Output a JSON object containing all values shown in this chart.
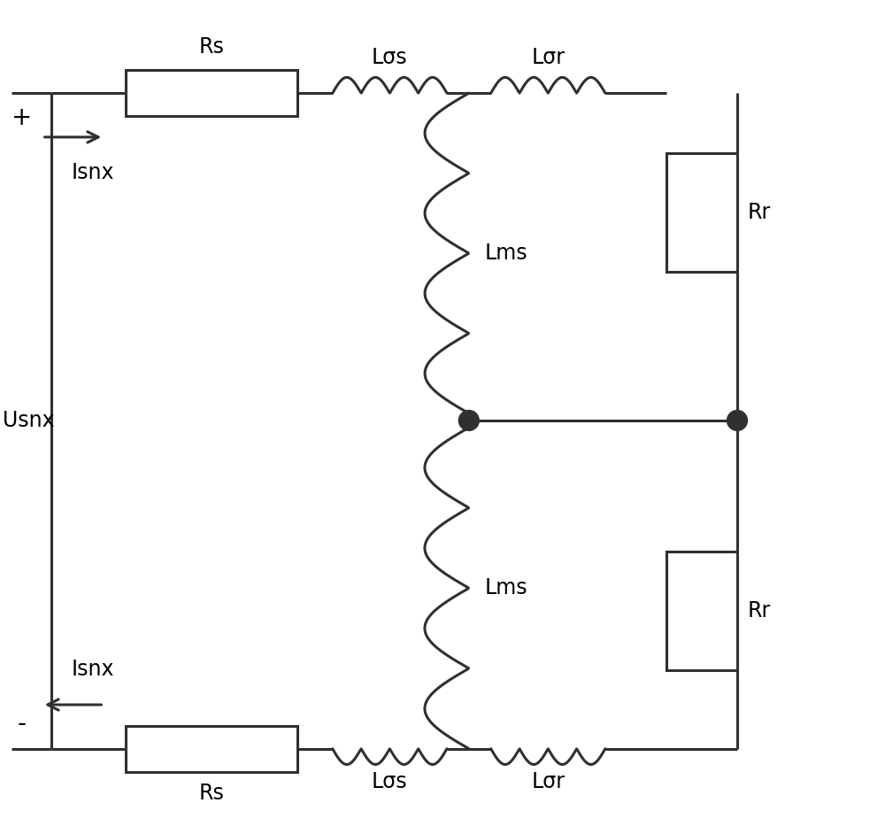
{
  "fig_width": 10.0,
  "fig_height": 9.33,
  "dpi": 100,
  "bg_color": "#ffffff",
  "line_color": "#303030",
  "line_width": 2.2,
  "text_color": "#000000",
  "font_size": 17,
  "labels": {
    "Rs_top": "Rs",
    "Rs_bot": "Rs",
    "Lsigmas_top": "Lσs",
    "Lsigmas_bot": "Lσs",
    "Lsigmar_top": "Lσr",
    "Lsigmar_bot": "Lσr",
    "Lms_top": "Lms",
    "Lms_bot": "Lms",
    "Rr_top": "Rr",
    "Rr_bot": "Rr",
    "Usnx": "Usnx",
    "Isnx_top": "Isnx",
    "Isnx_bot": "Isnx",
    "plus": "+",
    "minus": "-"
  }
}
